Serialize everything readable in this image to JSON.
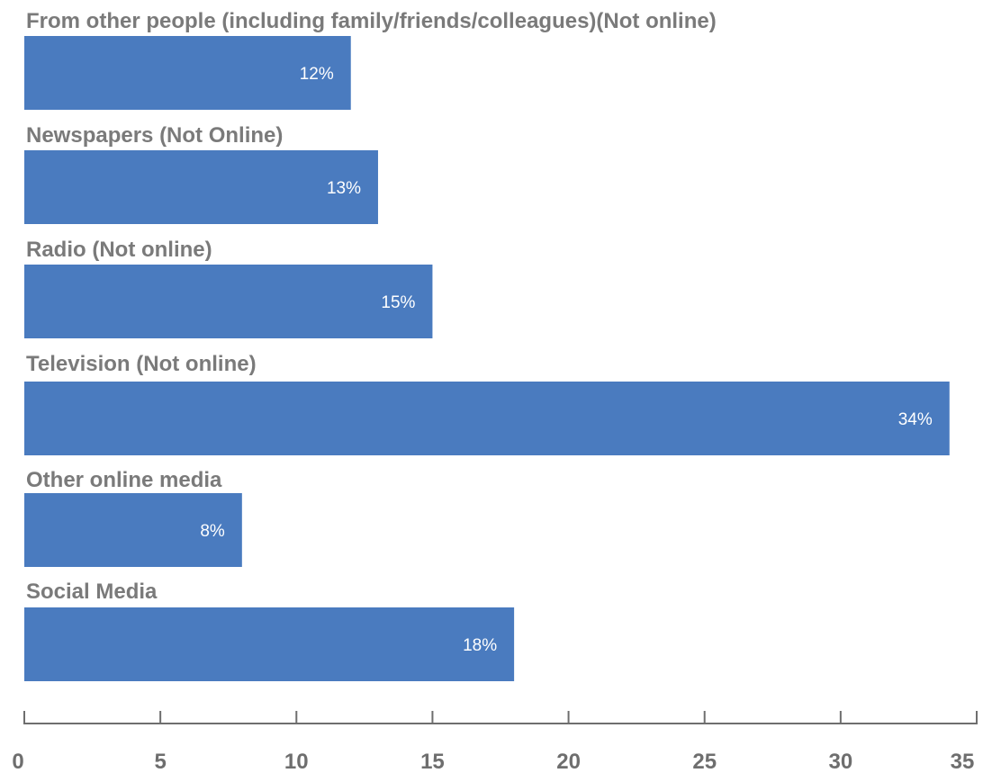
{
  "chart_data": {
    "type": "bar",
    "orientation": "horizontal",
    "categories": [
      "From other people (including family/friends/colleagues)(Not online)",
      "Newspapers (Not Online)",
      "Radio (Not online)",
      "Television (Not online)",
      "Other online media",
      "Social Media"
    ],
    "values": [
      12,
      13,
      15,
      34,
      8,
      18
    ],
    "data_labels": [
      "12%",
      "13%",
      "15%",
      "34%",
      "8%",
      "18%"
    ],
    "title": "",
    "xlabel": "",
    "ylabel": "",
    "xlim": [
      0,
      35
    ],
    "x_ticks": [
      0,
      5,
      10,
      15,
      20,
      25,
      30,
      35
    ],
    "grid": false,
    "legend": "none",
    "bar_color": "#4a7bbf",
    "label_color": "#7a7a7a",
    "axis_color": "#6e6e6e"
  }
}
